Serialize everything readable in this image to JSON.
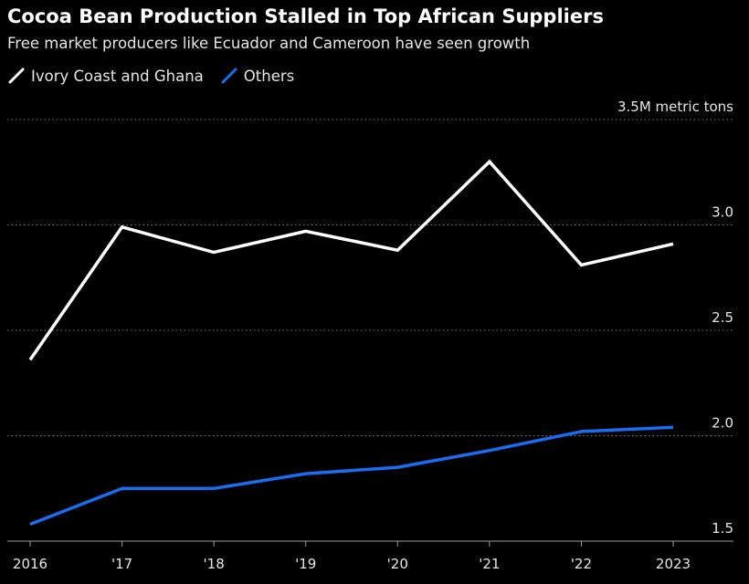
{
  "title": "Cocoa Bean Production Stalled in Top African Suppliers",
  "subtitle": "Free market producers like Ecuador and Cameroon have seen growth",
  "colors": {
    "background": "#000000",
    "series_1": "#ffffff",
    "series_2": "#1a6cf0",
    "grid": "#7a7a7a"
  },
  "chart_data": {
    "type": "line",
    "x": [
      "2016",
      "'17",
      "'18",
      "'19",
      "'20",
      "'21",
      "'22",
      "2023"
    ],
    "y_tick_labels": [
      "3.5M metric tons",
      "3.0",
      "2.5",
      "2.0",
      "1.5"
    ],
    "y_ticks": [
      3.5,
      3.0,
      2.5,
      2.0,
      1.5
    ],
    "ylim": [
      1.4,
      3.55
    ],
    "grid": "horizontal-dotted",
    "legend_placement": "top-left",
    "series": [
      {
        "name": "Ivory Coast and Ghana",
        "values": [
          2.36,
          2.99,
          2.87,
          2.97,
          2.88,
          3.3,
          2.81,
          2.91
        ]
      },
      {
        "name": "Others",
        "values": [
          1.58,
          1.75,
          1.75,
          1.82,
          1.85,
          1.93,
          2.02,
          2.04
        ]
      }
    ]
  }
}
